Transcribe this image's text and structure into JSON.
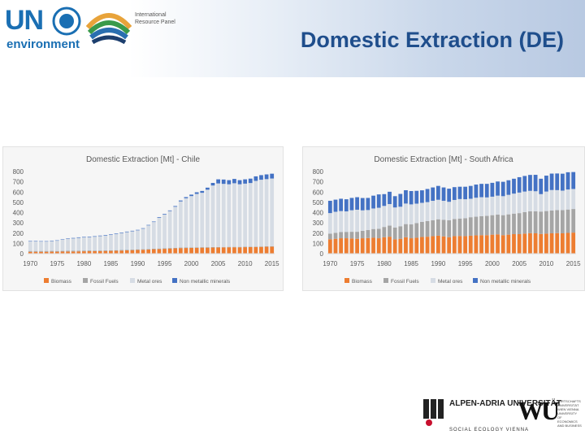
{
  "header": {
    "un_logo_text": "UN",
    "un_env_text": "environment",
    "irp_text": "International Resource Panel",
    "slide_title": "Domestic Extraction (DE)"
  },
  "footer": {
    "aau_name": "ALPEN-ADRIA UNIVERSITÄT",
    "aau_sub": "SOCIAL ECOLOGY VIENNA",
    "wu_name": "WU",
    "wu_text": "WIRTSCHAFTS UNIVERSITÄT WIEN VIENNA UNIVERSITY OF ECONOMICS AND BUSINESS"
  },
  "colors": {
    "biomass": "#ed7d31",
    "fossil": "#a5a5a5",
    "metal": "#d6dce4",
    "nonmetal": "#4472c4"
  },
  "chart_data": [
    {
      "type": "bar",
      "stacked": true,
      "title": "Domestic Extraction [Mt] - Chile",
      "ylim": [
        0,
        800
      ],
      "yticks": [
        "0",
        "100",
        "200",
        "300",
        "400",
        "500",
        "600",
        "700",
        "800"
      ],
      "xticks": [
        "1970",
        "1975",
        "1980",
        "1985",
        "1990",
        "1995",
        "2000",
        "2005",
        "2010",
        "2015"
      ],
      "categories": [
        1970,
        1971,
        1972,
        1973,
        1974,
        1975,
        1976,
        1977,
        1978,
        1979,
        1980,
        1981,
        1982,
        1983,
        1984,
        1985,
        1986,
        1987,
        1988,
        1989,
        1990,
        1991,
        1992,
        1993,
        1994,
        1995,
        1996,
        1997,
        1998,
        1999,
        2000,
        2001,
        2002,
        2003,
        2004,
        2005,
        2006,
        2007,
        2008,
        2009,
        2010,
        2011,
        2012,
        2013,
        2014,
        2015
      ],
      "legend": [
        "Biomass",
        "Fossil Fuels",
        "Metal ores",
        "Non metallic minerals"
      ],
      "legend_position": "bottom",
      "grid": false,
      "series": [
        {
          "name": "Biomass",
          "color": "#ed7d31",
          "values": [
            18,
            18,
            18,
            18,
            19,
            19,
            20,
            21,
            21,
            22,
            23,
            24,
            24,
            25,
            26,
            27,
            28,
            30,
            32,
            34,
            36,
            38,
            40,
            43,
            45,
            47,
            50,
            52,
            54,
            55,
            56,
            57,
            58,
            58,
            59,
            60,
            61,
            62,
            62,
            62,
            63,
            64,
            65,
            66,
            67,
            68
          ]
        },
        {
          "name": "Fossil Fuels",
          "color": "#a5a5a5",
          "values": [
            8,
            8,
            8,
            8,
            8,
            7,
            7,
            7,
            7,
            7,
            7,
            7,
            6,
            6,
            6,
            6,
            6,
            6,
            6,
            6,
            6,
            5,
            5,
            5,
            5,
            5,
            5,
            5,
            5,
            5,
            5,
            5,
            5,
            5,
            5,
            4,
            4,
            4,
            4,
            4,
            4,
            4,
            4,
            4,
            4,
            4
          ]
        },
        {
          "name": "Metal ores",
          "color": "#d6dce4",
          "values": [
            95,
            95,
            92,
            92,
            96,
            100,
            110,
            118,
            120,
            125,
            128,
            130,
            135,
            140,
            145,
            150,
            158,
            165,
            172,
            178,
            185,
            200,
            230,
            260,
            300,
            330,
            360,
            400,
            450,
            480,
            500,
            520,
            530,
            560,
            600,
            620,
            615,
            610,
            620,
            610,
            615,
            620,
            640,
            650,
            655,
            660
          ]
        },
        {
          "name": "Non metallic minerals",
          "color": "#4472c4",
          "values": [
            4,
            4,
            4,
            4,
            4,
            4,
            4,
            4,
            5,
            5,
            5,
            5,
            5,
            5,
            5,
            5,
            5,
            5,
            5,
            5,
            5,
            5,
            5,
            5,
            6,
            6,
            6,
            7,
            9,
            11,
            14,
            16,
            18,
            20,
            25,
            40,
            42,
            40,
            42,
            40,
            42,
            43,
            44,
            45,
            46,
            47
          ]
        }
      ]
    },
    {
      "type": "bar",
      "stacked": true,
      "title": "Domestic Extraction [Mt] - South Africa",
      "ylim": [
        0,
        800
      ],
      "yticks": [
        "0",
        "100",
        "200",
        "300",
        "400",
        "500",
        "600",
        "700",
        "800"
      ],
      "xticks": [
        "1970",
        "1975",
        "1980",
        "1985",
        "1990",
        "1995",
        "2000",
        "2005",
        "2010",
        "2015"
      ],
      "categories": [
        1970,
        1971,
        1972,
        1973,
        1974,
        1975,
        1976,
        1977,
        1978,
        1979,
        1980,
        1981,
        1982,
        1983,
        1984,
        1985,
        1986,
        1987,
        1988,
        1989,
        1990,
        1991,
        1992,
        1993,
        1994,
        1995,
        1996,
        1997,
        1998,
        1999,
        2000,
        2001,
        2002,
        2003,
        2004,
        2005,
        2006,
        2007,
        2008,
        2009,
        2010,
        2011,
        2012,
        2013,
        2014,
        2015
      ],
      "legend": [
        "Biomass",
        "Fossil Fuels",
        "Metal ores",
        "Non metallic minerals"
      ],
      "legend_position": "bottom",
      "grid": false,
      "series": [
        {
          "name": "Biomass",
          "color": "#ed7d31",
          "values": [
            140,
            145,
            150,
            150,
            148,
            145,
            150,
            152,
            155,
            150,
            160,
            165,
            140,
            145,
            160,
            150,
            155,
            162,
            165,
            170,
            175,
            168,
            160,
            170,
            172,
            170,
            175,
            178,
            180,
            180,
            185,
            188,
            180,
            185,
            190,
            190,
            195,
            200,
            198,
            192,
            195,
            198,
            200,
            198,
            202,
            205
          ]
        },
        {
          "name": "Fossil Fuels",
          "color": "#a5a5a5",
          "values": [
            55,
            58,
            60,
            62,
            65,
            68,
            72,
            78,
            85,
            92,
            100,
            108,
            115,
            122,
            128,
            135,
            142,
            148,
            152,
            155,
            160,
            162,
            165,
            168,
            170,
            175,
            180,
            182,
            185,
            188,
            190,
            192,
            195,
            198,
            200,
            205,
            210,
            212,
            215,
            218,
            220,
            222,
            224,
            226,
            228,
            230
          ]
        },
        {
          "name": "Metal ores",
          "color": "#d6dce4",
          "values": [
            200,
            205,
            205,
            200,
            210,
            215,
            200,
            195,
            200,
            205,
            205,
            210,
            195,
            190,
            200,
            195,
            190,
            185,
            185,
            190,
            190,
            185,
            180,
            185,
            190,
            185,
            180,
            185,
            185,
            180,
            180,
            185,
            185,
            190,
            195,
            200,
            200,
            200,
            195,
            170,
            190,
            200,
            195,
            190,
            195,
            195
          ]
        },
        {
          "name": "Non metallic minerals",
          "color": "#4472c4",
          "values": [
            120,
            118,
            120,
            118,
            120,
            122,
            120,
            118,
            125,
            130,
            115,
            120,
            110,
            125,
            130,
            130,
            125,
            122,
            128,
            130,
            135,
            130,
            128,
            125,
            120,
            122,
            125,
            128,
            130,
            132,
            135,
            138,
            140,
            142,
            145,
            150,
            152,
            155,
            160,
            150,
            155,
            160,
            162,
            165,
            168,
            165
          ]
        }
      ]
    }
  ]
}
